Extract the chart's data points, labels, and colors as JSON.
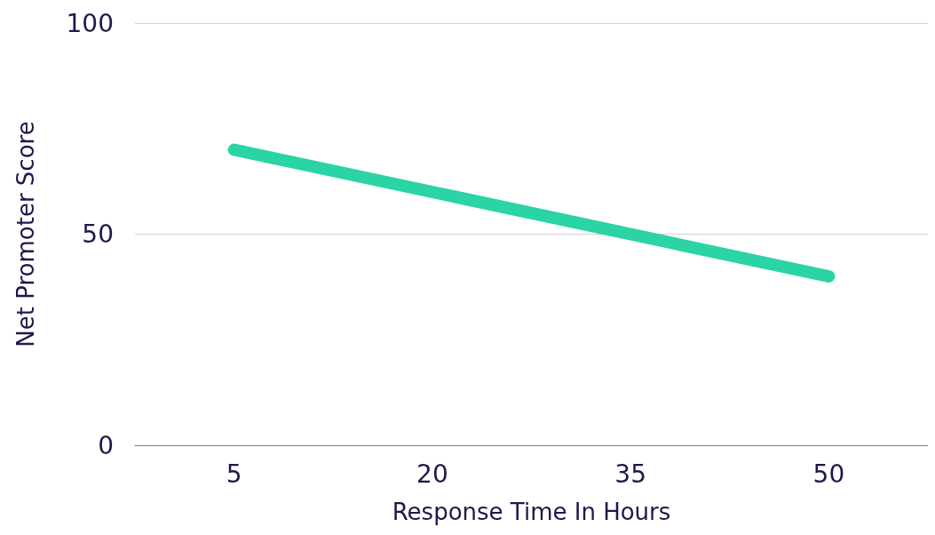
{
  "chart_data": {
    "type": "line",
    "xlabel": "Response Time In Hours",
    "ylabel": "Net Promoter Score",
    "categories": [
      "5",
      "20",
      "35",
      "50"
    ],
    "series": [
      {
        "color": "#2ad4a4",
        "values": [
          70,
          60,
          50,
          40
        ]
      }
    ],
    "ylim": [
      0,
      100
    ],
    "yticks": [
      0,
      50,
      100
    ],
    "grid": "y",
    "line_style": "solid"
  }
}
